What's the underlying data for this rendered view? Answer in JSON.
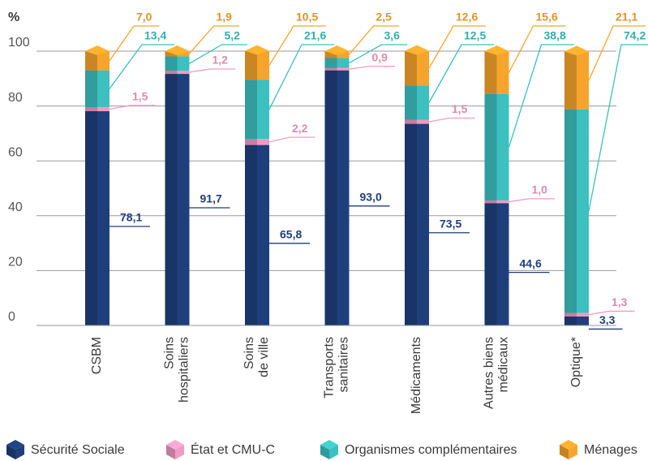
{
  "chart_data": {
    "type": "stacked-bar",
    "y_label": "%",
    "categories": [
      "CSBM",
      "Soins\nhospitaliers",
      "Soins\nde ville",
      "Transports\nsanitaires",
      "Médicaments",
      "Autres biens\nmédicaux",
      "Optique*"
    ],
    "ylim": [
      0,
      100
    ],
    "yticks": [
      0,
      20,
      40,
      60,
      80,
      100
    ],
    "grid": true,
    "legend": "bottom",
    "series": [
      {
        "name": "Sécurité Sociale",
        "color": "#1f3f7c",
        "values": [
          78.1,
          91.7,
          65.8,
          93.0,
          73.5,
          44.6,
          3.3
        ],
        "value_labels": [
          "78,1",
          "91,7",
          "65,8",
          "93,0",
          "73,5",
          "44,6",
          "3,3"
        ]
      },
      {
        "name": "État et CMU-C",
        "color": "#f29ac4",
        "values": [
          1.5,
          1.2,
          2.2,
          0.9,
          1.5,
          1.0,
          1.3
        ],
        "value_labels": [
          "1,5",
          "1,2",
          "2,2",
          "0,9",
          "1,5",
          "1,0",
          "1,3"
        ]
      },
      {
        "name": "Organismes complémentaires",
        "color": "#3cc0c0",
        "values": [
          13.4,
          5.2,
          21.6,
          3.6,
          12.5,
          38.8,
          74.2
        ],
        "value_labels": [
          "13,4",
          "5,2",
          "21,6",
          "3,6",
          "12,5",
          "38,8",
          "74,2"
        ]
      },
      {
        "name": "Ménages",
        "color": "#f7a42c",
        "values": [
          7.0,
          1.9,
          10.5,
          2.5,
          12.6,
          15.6,
          21.1
        ],
        "value_labels": [
          "7,0",
          "1,9",
          "10,5",
          "2,5",
          "12,6",
          "15,6",
          "21,1"
        ]
      }
    ]
  }
}
